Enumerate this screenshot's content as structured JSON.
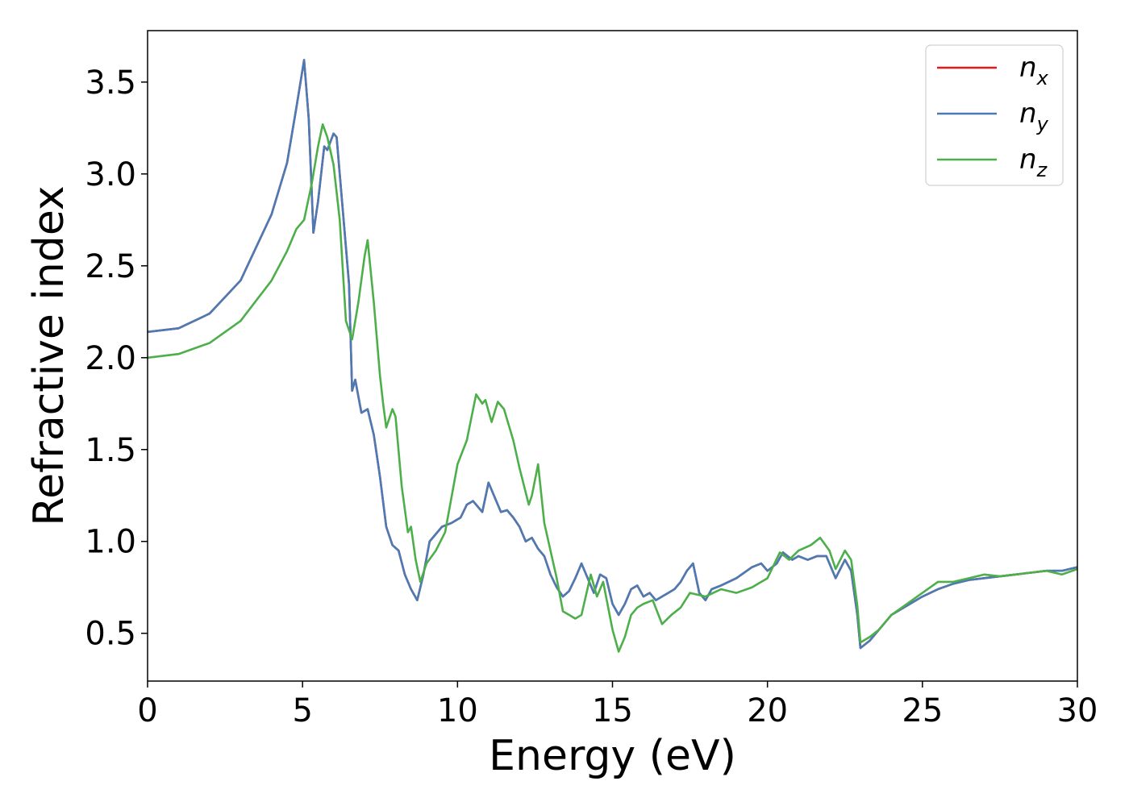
{
  "chart_data": {
    "type": "line",
    "title": "",
    "xlabel": "Energy (eV)",
    "ylabel": "Refractive index",
    "xlim": [
      0,
      30
    ],
    "ylim": [
      0.24,
      3.78
    ],
    "xticks": [
      0,
      5,
      10,
      15,
      20,
      25,
      30
    ],
    "yticks": [
      0.5,
      1.0,
      1.5,
      2.0,
      2.5,
      3.0,
      3.5
    ],
    "grid": false,
    "legend_position": "top-right",
    "series": [
      {
        "name": "n",
        "subscript": "x",
        "color": "#e41a1c",
        "points": [
          [
            0,
            2.14
          ],
          [
            1,
            2.16
          ],
          [
            2,
            2.24
          ],
          [
            3,
            2.42
          ],
          [
            4,
            2.78
          ],
          [
            4.5,
            3.06
          ],
          [
            4.8,
            3.36
          ],
          [
            5.05,
            3.62
          ],
          [
            5.2,
            3.3
          ],
          [
            5.35,
            2.68
          ],
          [
            5.5,
            2.85
          ],
          [
            5.7,
            3.15
          ],
          [
            5.8,
            3.13
          ],
          [
            6.0,
            3.22
          ],
          [
            6.1,
            3.2
          ],
          [
            6.3,
            2.8
          ],
          [
            6.5,
            2.4
          ],
          [
            6.6,
            1.82
          ],
          [
            6.7,
            1.88
          ],
          [
            6.9,
            1.7
          ],
          [
            7.1,
            1.72
          ],
          [
            7.3,
            1.58
          ],
          [
            7.5,
            1.35
          ],
          [
            7.7,
            1.08
          ],
          [
            7.9,
            0.98
          ],
          [
            8.1,
            0.95
          ],
          [
            8.3,
            0.82
          ],
          [
            8.5,
            0.74
          ],
          [
            8.7,
            0.68
          ],
          [
            8.9,
            0.82
          ],
          [
            9.1,
            1.0
          ],
          [
            9.5,
            1.08
          ],
          [
            9.8,
            1.1
          ],
          [
            10.1,
            1.13
          ],
          [
            10.3,
            1.2
          ],
          [
            10.5,
            1.22
          ],
          [
            10.8,
            1.16
          ],
          [
            11.0,
            1.32
          ],
          [
            11.2,
            1.24
          ],
          [
            11.4,
            1.16
          ],
          [
            11.6,
            1.17
          ],
          [
            11.8,
            1.13
          ],
          [
            12.0,
            1.08
          ],
          [
            12.2,
            1.0
          ],
          [
            12.4,
            1.02
          ],
          [
            12.6,
            0.96
          ],
          [
            12.8,
            0.92
          ],
          [
            13.0,
            0.82
          ],
          [
            13.2,
            0.75
          ],
          [
            13.4,
            0.7
          ],
          [
            13.6,
            0.73
          ],
          [
            13.8,
            0.8
          ],
          [
            14.0,
            0.88
          ],
          [
            14.2,
            0.8
          ],
          [
            14.4,
            0.72
          ],
          [
            14.6,
            0.82
          ],
          [
            14.8,
            0.8
          ],
          [
            15.0,
            0.66
          ],
          [
            15.2,
            0.6
          ],
          [
            15.4,
            0.66
          ],
          [
            15.6,
            0.74
          ],
          [
            15.8,
            0.76
          ],
          [
            16.0,
            0.7
          ],
          [
            16.2,
            0.72
          ],
          [
            16.4,
            0.68
          ],
          [
            16.6,
            0.7
          ],
          [
            16.8,
            0.72
          ],
          [
            17.0,
            0.74
          ],
          [
            17.2,
            0.78
          ],
          [
            17.4,
            0.84
          ],
          [
            17.6,
            0.88
          ],
          [
            17.8,
            0.72
          ],
          [
            18.0,
            0.68
          ],
          [
            18.2,
            0.74
          ],
          [
            18.5,
            0.76
          ],
          [
            19.0,
            0.8
          ],
          [
            19.5,
            0.86
          ],
          [
            19.8,
            0.88
          ],
          [
            20.0,
            0.84
          ],
          [
            20.3,
            0.88
          ],
          [
            20.5,
            0.94
          ],
          [
            20.8,
            0.9
          ],
          [
            21.0,
            0.92
          ],
          [
            21.3,
            0.9
          ],
          [
            21.6,
            0.92
          ],
          [
            21.9,
            0.92
          ],
          [
            22.2,
            0.8
          ],
          [
            22.5,
            0.9
          ],
          [
            22.7,
            0.84
          ],
          [
            22.9,
            0.6
          ],
          [
            23.0,
            0.42
          ],
          [
            23.3,
            0.46
          ],
          [
            23.6,
            0.52
          ],
          [
            24.0,
            0.6
          ],
          [
            24.5,
            0.65
          ],
          [
            25.0,
            0.7
          ],
          [
            25.5,
            0.74
          ],
          [
            26.0,
            0.77
          ],
          [
            26.5,
            0.79
          ],
          [
            27.0,
            0.8
          ],
          [
            27.5,
            0.81
          ],
          [
            28.0,
            0.82
          ],
          [
            28.5,
            0.83
          ],
          [
            29.0,
            0.84
          ],
          [
            29.5,
            0.84
          ],
          [
            30.0,
            0.86
          ]
        ]
      },
      {
        "name": "n",
        "subscript": "y",
        "color": "#4a7bb5",
        "points": [
          [
            0,
            2.14
          ],
          [
            1,
            2.16
          ],
          [
            2,
            2.24
          ],
          [
            3,
            2.42
          ],
          [
            4,
            2.78
          ],
          [
            4.5,
            3.06
          ],
          [
            4.8,
            3.36
          ],
          [
            5.05,
            3.62
          ],
          [
            5.2,
            3.3
          ],
          [
            5.35,
            2.68
          ],
          [
            5.5,
            2.85
          ],
          [
            5.7,
            3.15
          ],
          [
            5.8,
            3.13
          ],
          [
            6.0,
            3.22
          ],
          [
            6.1,
            3.2
          ],
          [
            6.3,
            2.8
          ],
          [
            6.5,
            2.4
          ],
          [
            6.6,
            1.82
          ],
          [
            6.7,
            1.88
          ],
          [
            6.9,
            1.7
          ],
          [
            7.1,
            1.72
          ],
          [
            7.3,
            1.58
          ],
          [
            7.5,
            1.35
          ],
          [
            7.7,
            1.08
          ],
          [
            7.9,
            0.98
          ],
          [
            8.1,
            0.95
          ],
          [
            8.3,
            0.82
          ],
          [
            8.5,
            0.74
          ],
          [
            8.7,
            0.68
          ],
          [
            8.9,
            0.82
          ],
          [
            9.1,
            1.0
          ],
          [
            9.5,
            1.08
          ],
          [
            9.8,
            1.1
          ],
          [
            10.1,
            1.13
          ],
          [
            10.3,
            1.2
          ],
          [
            10.5,
            1.22
          ],
          [
            10.8,
            1.16
          ],
          [
            11.0,
            1.32
          ],
          [
            11.2,
            1.24
          ],
          [
            11.4,
            1.16
          ],
          [
            11.6,
            1.17
          ],
          [
            11.8,
            1.13
          ],
          [
            12.0,
            1.08
          ],
          [
            12.2,
            1.0
          ],
          [
            12.4,
            1.02
          ],
          [
            12.6,
            0.96
          ],
          [
            12.8,
            0.92
          ],
          [
            13.0,
            0.82
          ],
          [
            13.2,
            0.75
          ],
          [
            13.4,
            0.7
          ],
          [
            13.6,
            0.73
          ],
          [
            13.8,
            0.8
          ],
          [
            14.0,
            0.88
          ],
          [
            14.2,
            0.8
          ],
          [
            14.4,
            0.72
          ],
          [
            14.6,
            0.82
          ],
          [
            14.8,
            0.8
          ],
          [
            15.0,
            0.66
          ],
          [
            15.2,
            0.6
          ],
          [
            15.4,
            0.66
          ],
          [
            15.6,
            0.74
          ],
          [
            15.8,
            0.76
          ],
          [
            16.0,
            0.7
          ],
          [
            16.2,
            0.72
          ],
          [
            16.4,
            0.68
          ],
          [
            16.6,
            0.7
          ],
          [
            16.8,
            0.72
          ],
          [
            17.0,
            0.74
          ],
          [
            17.2,
            0.78
          ],
          [
            17.4,
            0.84
          ],
          [
            17.6,
            0.88
          ],
          [
            17.8,
            0.72
          ],
          [
            18.0,
            0.68
          ],
          [
            18.2,
            0.74
          ],
          [
            18.5,
            0.76
          ],
          [
            19.0,
            0.8
          ],
          [
            19.5,
            0.86
          ],
          [
            19.8,
            0.88
          ],
          [
            20.0,
            0.84
          ],
          [
            20.3,
            0.88
          ],
          [
            20.5,
            0.94
          ],
          [
            20.8,
            0.9
          ],
          [
            21.0,
            0.92
          ],
          [
            21.3,
            0.9
          ],
          [
            21.6,
            0.92
          ],
          [
            21.9,
            0.92
          ],
          [
            22.2,
            0.8
          ],
          [
            22.5,
            0.9
          ],
          [
            22.7,
            0.84
          ],
          [
            22.9,
            0.6
          ],
          [
            23.0,
            0.42
          ],
          [
            23.3,
            0.46
          ],
          [
            23.6,
            0.52
          ],
          [
            24.0,
            0.6
          ],
          [
            24.5,
            0.65
          ],
          [
            25.0,
            0.7
          ],
          [
            25.5,
            0.74
          ],
          [
            26.0,
            0.77
          ],
          [
            26.5,
            0.79
          ],
          [
            27.0,
            0.8
          ],
          [
            27.5,
            0.81
          ],
          [
            28.0,
            0.82
          ],
          [
            28.5,
            0.83
          ],
          [
            29.0,
            0.84
          ],
          [
            29.5,
            0.84
          ],
          [
            30.0,
            0.86
          ]
        ]
      },
      {
        "name": "n",
        "subscript": "z",
        "color": "#4daf4a",
        "points": [
          [
            0,
            2.0
          ],
          [
            1,
            2.02
          ],
          [
            2,
            2.08
          ],
          [
            3,
            2.2
          ],
          [
            4,
            2.42
          ],
          [
            4.5,
            2.58
          ],
          [
            4.8,
            2.7
          ],
          [
            5.05,
            2.75
          ],
          [
            5.3,
            2.95
          ],
          [
            5.5,
            3.15
          ],
          [
            5.65,
            3.27
          ],
          [
            5.8,
            3.2
          ],
          [
            6.0,
            3.05
          ],
          [
            6.2,
            2.75
          ],
          [
            6.4,
            2.2
          ],
          [
            6.6,
            2.1
          ],
          [
            6.8,
            2.3
          ],
          [
            7.0,
            2.55
          ],
          [
            7.1,
            2.64
          ],
          [
            7.3,
            2.3
          ],
          [
            7.5,
            1.9
          ],
          [
            7.6,
            1.75
          ],
          [
            7.7,
            1.62
          ],
          [
            7.9,
            1.72
          ],
          [
            8.0,
            1.68
          ],
          [
            8.2,
            1.3
          ],
          [
            8.4,
            1.05
          ],
          [
            8.5,
            1.08
          ],
          [
            8.65,
            0.9
          ],
          [
            8.8,
            0.78
          ],
          [
            9.0,
            0.88
          ],
          [
            9.3,
            0.95
          ],
          [
            9.6,
            1.05
          ],
          [
            10.0,
            1.42
          ],
          [
            10.3,
            1.55
          ],
          [
            10.6,
            1.8
          ],
          [
            10.8,
            1.75
          ],
          [
            10.9,
            1.77
          ],
          [
            11.1,
            1.65
          ],
          [
            11.3,
            1.76
          ],
          [
            11.5,
            1.72
          ],
          [
            11.8,
            1.55
          ],
          [
            12.0,
            1.4
          ],
          [
            12.3,
            1.2
          ],
          [
            12.4,
            1.25
          ],
          [
            12.6,
            1.42
          ],
          [
            12.8,
            1.1
          ],
          [
            13.0,
            0.95
          ],
          [
            13.2,
            0.8
          ],
          [
            13.4,
            0.62
          ],
          [
            13.6,
            0.6
          ],
          [
            13.8,
            0.58
          ],
          [
            14.0,
            0.6
          ],
          [
            14.3,
            0.82
          ],
          [
            14.5,
            0.7
          ],
          [
            14.7,
            0.78
          ],
          [
            15.0,
            0.52
          ],
          [
            15.2,
            0.4
          ],
          [
            15.4,
            0.48
          ],
          [
            15.6,
            0.6
          ],
          [
            15.8,
            0.64
          ],
          [
            16.0,
            0.66
          ],
          [
            16.3,
            0.68
          ],
          [
            16.6,
            0.55
          ],
          [
            16.9,
            0.6
          ],
          [
            17.2,
            0.64
          ],
          [
            17.5,
            0.72
          ],
          [
            18.0,
            0.7
          ],
          [
            18.5,
            0.74
          ],
          [
            19.0,
            0.72
          ],
          [
            19.5,
            0.75
          ],
          [
            20.0,
            0.8
          ],
          [
            20.4,
            0.94
          ],
          [
            20.7,
            0.9
          ],
          [
            21.0,
            0.95
          ],
          [
            21.4,
            0.98
          ],
          [
            21.7,
            1.02
          ],
          [
            22.0,
            0.95
          ],
          [
            22.2,
            0.85
          ],
          [
            22.5,
            0.95
          ],
          [
            22.7,
            0.9
          ],
          [
            22.9,
            0.65
          ],
          [
            23.0,
            0.45
          ],
          [
            23.3,
            0.48
          ],
          [
            23.6,
            0.52
          ],
          [
            24.0,
            0.6
          ],
          [
            24.5,
            0.66
          ],
          [
            25.0,
            0.72
          ],
          [
            25.5,
            0.78
          ],
          [
            26.0,
            0.78
          ],
          [
            26.5,
            0.8
          ],
          [
            27.0,
            0.82
          ],
          [
            27.5,
            0.81
          ],
          [
            28.0,
            0.82
          ],
          [
            28.5,
            0.83
          ],
          [
            29.0,
            0.84
          ],
          [
            29.5,
            0.82
          ],
          [
            30.0,
            0.85
          ]
        ]
      }
    ]
  }
}
